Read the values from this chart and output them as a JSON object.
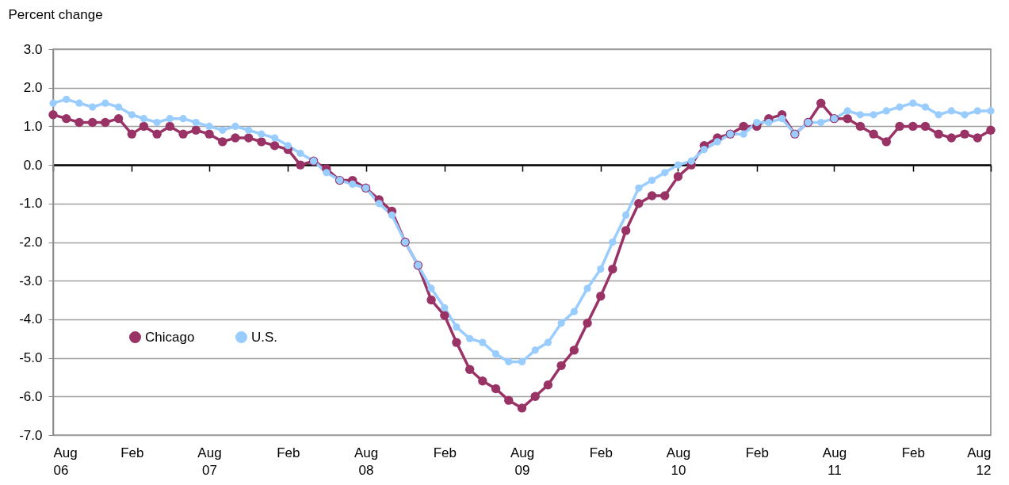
{
  "chart_data": {
    "type": "line",
    "ylabel": "Percent change",
    "x": [
      "2006-08",
      "2006-09",
      "2006-10",
      "2006-11",
      "2006-12",
      "2007-01",
      "2007-02",
      "2007-03",
      "2007-04",
      "2007-05",
      "2007-06",
      "2007-07",
      "2007-08",
      "2007-09",
      "2007-10",
      "2007-11",
      "2007-12",
      "2008-01",
      "2008-02",
      "2008-03",
      "2008-04",
      "2008-05",
      "2008-06",
      "2008-07",
      "2008-08",
      "2008-09",
      "2008-10",
      "2008-11",
      "2008-12",
      "2009-01",
      "2009-02",
      "2009-03",
      "2009-04",
      "2009-05",
      "2009-06",
      "2009-07",
      "2009-08",
      "2009-09",
      "2009-10",
      "2009-11",
      "2009-12",
      "2010-01",
      "2010-02",
      "2010-03",
      "2010-04",
      "2010-05",
      "2010-06",
      "2010-07",
      "2010-08",
      "2010-09",
      "2010-10",
      "2010-11",
      "2010-12",
      "2011-01",
      "2011-02",
      "2011-03",
      "2011-04",
      "2011-05",
      "2011-06",
      "2011-07",
      "2011-08",
      "2011-09",
      "2011-10",
      "2011-11",
      "2011-12",
      "2012-01",
      "2012-02",
      "2012-03",
      "2012-04",
      "2012-05",
      "2012-06",
      "2012-07",
      "2012-08"
    ],
    "series": [
      {
        "name": "Chicago",
        "color": "#993366",
        "values": [
          1.3,
          1.2,
          1.1,
          1.1,
          1.1,
          1.2,
          0.8,
          1.0,
          0.8,
          1.0,
          0.8,
          0.9,
          0.8,
          0.6,
          0.7,
          0.7,
          0.6,
          0.5,
          0.4,
          0.0,
          0.1,
          -0.1,
          -0.4,
          -0.4,
          -0.6,
          -0.9,
          -1.2,
          -2.0,
          -2.6,
          -3.5,
          -3.9,
          -4.6,
          -5.3,
          -5.6,
          -5.8,
          -6.1,
          -6.3,
          -6.0,
          -5.7,
          -5.2,
          -4.8,
          -4.1,
          -3.4,
          -2.7,
          -1.7,
          -1.0,
          -0.8,
          -0.8,
          -0.3,
          0.0,
          0.5,
          0.7,
          0.8,
          1.0,
          1.0,
          1.2,
          1.3,
          0.8,
          1.1,
          1.6,
          1.2,
          1.2,
          1.0,
          0.8,
          0.6,
          1.0,
          1.0,
          1.0,
          0.8,
          0.7,
          0.8,
          0.7,
          0.9
        ]
      },
      {
        "name": "U.S.",
        "color": "#99ccff",
        "values": [
          1.6,
          1.7,
          1.6,
          1.5,
          1.6,
          1.5,
          1.3,
          1.2,
          1.1,
          1.2,
          1.2,
          1.1,
          1.0,
          0.9,
          1.0,
          0.9,
          0.8,
          0.7,
          0.5,
          0.3,
          0.1,
          -0.2,
          -0.4,
          -0.5,
          -0.6,
          -1.0,
          -1.3,
          -2.0,
          -2.6,
          -3.2,
          -3.7,
          -4.2,
          -4.5,
          -4.6,
          -4.9,
          -5.1,
          -5.1,
          -4.8,
          -4.6,
          -4.1,
          -3.8,
          -3.2,
          -2.7,
          -2.0,
          -1.3,
          -0.6,
          -0.4,
          -0.2,
          0.0,
          0.1,
          0.4,
          0.6,
          0.8,
          0.8,
          1.1,
          1.1,
          1.2,
          0.8,
          1.1,
          1.1,
          1.2,
          1.4,
          1.3,
          1.3,
          1.4,
          1.5,
          1.6,
          1.5,
          1.3,
          1.4,
          1.3,
          1.4,
          1.4
        ]
      }
    ],
    "xlim": [
      "2006-08",
      "2012-08"
    ],
    "xticks": [
      {
        "value": "2006-08",
        "label": "Aug\n06"
      },
      {
        "value": "2007-02",
        "label": "Feb"
      },
      {
        "value": "2007-08",
        "label": "Aug\n07"
      },
      {
        "value": "2008-02",
        "label": "Feb"
      },
      {
        "value": "2008-08",
        "label": "Aug\n08"
      },
      {
        "value": "2009-02",
        "label": "Feb"
      },
      {
        "value": "2009-08",
        "label": "Aug\n09"
      },
      {
        "value": "2010-02",
        "label": "Feb"
      },
      {
        "value": "2010-08",
        "label": "Aug\n10"
      },
      {
        "value": "2011-02",
        "label": "Feb"
      },
      {
        "value": "2011-08",
        "label": "Aug\n11"
      },
      {
        "value": "2012-02",
        "label": "Feb"
      },
      {
        "value": "2012-08",
        "label": "Aug\n12"
      }
    ],
    "ylim": [
      -7,
      3
    ],
    "yticks": [
      {
        "value": -7,
        "label": "-7.0"
      },
      {
        "value": -6,
        "label": "-6.0"
      },
      {
        "value": -5,
        "label": "-5.0"
      },
      {
        "value": -4,
        "label": "-4.0"
      },
      {
        "value": -3,
        "label": "-3.0"
      },
      {
        "value": -2,
        "label": "-2.0"
      },
      {
        "value": -1,
        "label": "-1.0"
      },
      {
        "value": 0,
        "label": "0.0"
      },
      {
        "value": 1,
        "label": "1.0"
      },
      {
        "value": 2,
        "label": "2.0"
      },
      {
        "value": 3,
        "label": "3.0"
      }
    ],
    "grid": "y",
    "legend": "bottom left",
    "marker": "circle",
    "line_style": "solid"
  }
}
